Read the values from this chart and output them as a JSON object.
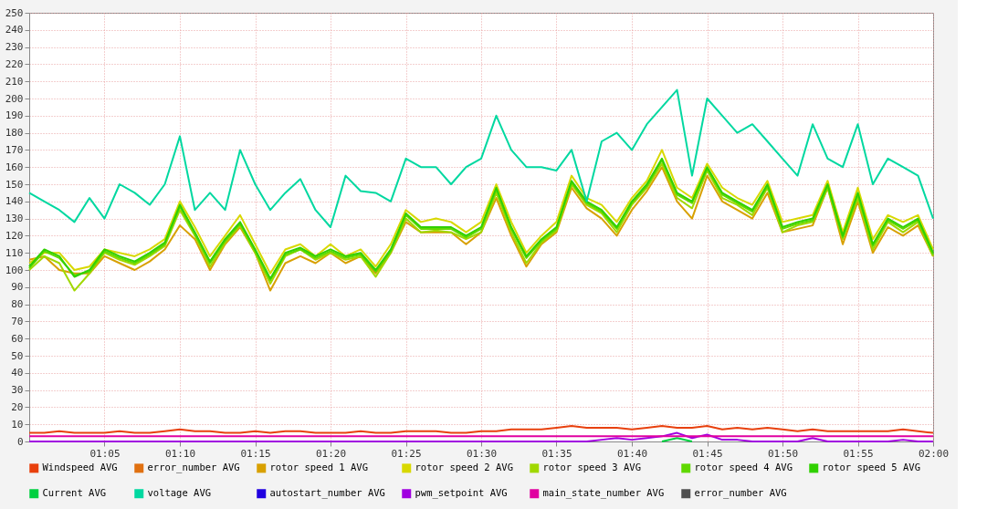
{
  "chart_data": {
    "type": "line",
    "xlim": [
      1,
      2
    ],
    "ylim": [
      0,
      250
    ],
    "yticks": [
      0,
      10,
      20,
      30,
      40,
      50,
      60,
      70,
      80,
      90,
      100,
      110,
      120,
      130,
      140,
      150,
      160,
      170,
      180,
      190,
      200,
      210,
      220,
      230,
      240,
      250
    ],
    "xticks": [
      {
        "value": 1.0833,
        "label": "01:05"
      },
      {
        "value": 1.1667,
        "label": "01:10"
      },
      {
        "value": 1.25,
        "label": "01:15"
      },
      {
        "value": 1.3333,
        "label": "01:20"
      },
      {
        "value": 1.4167,
        "label": "01:25"
      },
      {
        "value": 1.5,
        "label": "01:30"
      },
      {
        "value": 1.5833,
        "label": "01:35"
      },
      {
        "value": 1.6667,
        "label": "01:40"
      },
      {
        "value": 1.75,
        "label": "01:45"
      },
      {
        "value": 1.8333,
        "label": "01:50"
      },
      {
        "value": 1.9167,
        "label": "01:55"
      },
      {
        "value": 2,
        "label": "02:00"
      }
    ],
    "x": [
      1,
      1.0167,
      1.0333,
      1.05,
      1.0667,
      1.0833,
      1.1,
      1.1167,
      1.1333,
      1.15,
      1.1667,
      1.1833,
      1.2,
      1.2167,
      1.2333,
      1.25,
      1.2667,
      1.2833,
      1.3,
      1.3167,
      1.3333,
      1.35,
      1.3667,
      1.3833,
      1.4,
      1.4167,
      1.4333,
      1.45,
      1.4667,
      1.4833,
      1.5,
      1.5167,
      1.5333,
      1.55,
      1.5667,
      1.5833,
      1.6,
      1.6167,
      1.6333,
      1.65,
      1.6667,
      1.6833,
      1.7,
      1.7167,
      1.7333,
      1.75,
      1.7667,
      1.7833,
      1.8,
      1.8167,
      1.8333,
      1.85,
      1.8667,
      1.8833,
      1.9,
      1.9167,
      1.9333,
      1.95,
      1.9667,
      1.9833,
      2
    ],
    "grid": true,
    "legend": "bottom",
    "marker": "none",
    "line_style": "solid",
    "series": [
      {
        "name": "Windspeed AVG",
        "color": "#e8400d",
        "values": [
          5,
          5,
          6,
          5,
          5,
          5,
          6,
          5,
          5,
          6,
          7,
          6,
          6,
          5,
          5,
          6,
          5,
          6,
          6,
          5,
          5,
          5,
          6,
          5,
          5,
          6,
          6,
          6,
          5,
          5,
          6,
          6,
          7,
          7,
          7,
          8,
          9,
          8,
          8,
          8,
          7,
          8,
          9,
          8,
          8,
          9,
          7,
          8,
          7,
          8,
          7,
          6,
          7,
          6,
          6,
          6,
          6,
          6,
          7,
          6,
          5
        ]
      },
      {
        "name": "error_number AVG",
        "color": "#e07010",
        "values": [
          null,
          null,
          null,
          null,
          null,
          null,
          null,
          null,
          null,
          null,
          null,
          null,
          null,
          null,
          null,
          null,
          null,
          null,
          null,
          null,
          null,
          null,
          null,
          null,
          null,
          null,
          null,
          null,
          null,
          null,
          null,
          null,
          null,
          null,
          null,
          null,
          null,
          null,
          null,
          null,
          null,
          null,
          null,
          null,
          null,
          null,
          null,
          null,
          null,
          null,
          null,
          null,
          null,
          null,
          null,
          null,
          null,
          null,
          null,
          null,
          null
        ]
      },
      {
        "name": "rotor speed 1 AVG",
        "color": "#d8a000",
        "values": [
          106,
          108,
          100,
          98,
          98,
          108,
          104,
          100,
          105,
          112,
          126,
          118,
          100,
          115,
          125,
          110,
          88,
          104,
          108,
          104,
          110,
          104,
          108,
          98,
          110,
          128,
          122,
          122,
          122,
          115,
          122,
          142,
          120,
          102,
          115,
          122,
          148,
          136,
          130,
          120,
          135,
          146,
          160,
          140,
          130,
          155,
          140,
          135,
          130,
          145,
          122,
          124,
          126,
          148,
          115,
          140,
          110,
          125,
          120,
          126,
          108
        ]
      },
      {
        "name": "rotor speed 2 AVG",
        "color": "#d8d800",
        "values": [
          104,
          110,
          110,
          100,
          102,
          112,
          110,
          108,
          112,
          118,
          140,
          125,
          108,
          120,
          132,
          115,
          98,
          112,
          115,
          108,
          115,
          108,
          112,
          102,
          115,
          135,
          128,
          130,
          128,
          122,
          128,
          150,
          128,
          110,
          120,
          128,
          155,
          142,
          138,
          128,
          142,
          152,
          170,
          148,
          142,
          162,
          148,
          142,
          138,
          152,
          128,
          130,
          132,
          152,
          122,
          148,
          118,
          132,
          128,
          132,
          112
        ]
      },
      {
        "name": "rotor speed 3 AVG",
        "color": "#a0d800",
        "values": [
          100,
          108,
          104,
          88,
          98,
          110,
          106,
          103,
          108,
          114,
          135,
          120,
          102,
          116,
          126,
          110,
          92,
          108,
          112,
          106,
          110,
          106,
          108,
          96,
          110,
          130,
          122,
          123,
          122,
          118,
          122,
          145,
          122,
          104,
          116,
          123,
          150,
          138,
          133,
          122,
          138,
          148,
          162,
          142,
          136,
          158,
          142,
          138,
          132,
          148,
          122,
          126,
          128,
          148,
          118,
          142,
          112,
          128,
          122,
          128,
          108
        ]
      },
      {
        "name": "rotor speed 4 AVG",
        "color": "#60d800",
        "values": [
          101,
          111,
          107,
          97,
          99,
          111,
          107,
          104,
          109,
          115,
          137,
          121,
          104,
          117,
          127,
          111,
          94,
          109,
          112,
          107,
          111,
          107,
          109,
          99,
          111,
          132,
          124,
          124,
          124,
          119,
          124,
          147,
          124,
          107,
          117,
          124,
          151,
          139,
          134,
          124,
          139,
          149,
          164,
          144,
          139,
          159,
          144,
          139,
          134,
          149,
          124,
          127,
          129,
          149,
          119,
          144,
          114,
          129,
          124,
          129,
          109
        ]
      },
      {
        "name": "rotor speed 5 AVG",
        "color": "#30d000",
        "values": [
          102,
          112,
          108,
          96,
          100,
          112,
          108,
          105,
          110,
          116,
          138,
          122,
          105,
          118,
          128,
          112,
          95,
          110,
          113,
          108,
          112,
          108,
          110,
          100,
          112,
          133,
          125,
          125,
          125,
          120,
          125,
          148,
          125,
          108,
          118,
          125,
          152,
          140,
          135,
          125,
          140,
          150,
          165,
          145,
          140,
          160,
          145,
          140,
          135,
          150,
          125,
          128,
          130,
          150,
          120,
          145,
          115,
          130,
          125,
          130,
          110
        ]
      },
      {
        "name": "Current AVG",
        "color": "#00d040",
        "values": [
          null,
          null,
          null,
          null,
          null,
          null,
          null,
          null,
          null,
          null,
          null,
          null,
          null,
          null,
          null,
          null,
          null,
          null,
          null,
          null,
          null,
          null,
          null,
          null,
          null,
          null,
          null,
          null,
          null,
          null,
          null,
          null,
          null,
          null,
          null,
          null,
          null,
          null,
          null,
          null,
          null,
          null,
          0,
          2,
          0,
          null,
          null,
          null,
          null,
          null,
          null,
          null,
          null,
          null,
          null,
          null,
          null,
          null,
          null,
          null,
          null
        ]
      },
      {
        "name": "voltage AVG",
        "color": "#00d8a0",
        "values": [
          145,
          140,
          135,
          128,
          142,
          130,
          150,
          145,
          138,
          150,
          178,
          135,
          145,
          135,
          170,
          150,
          135,
          145,
          153,
          135,
          125,
          155,
          146,
          145,
          140,
          165,
          160,
          160,
          150,
          160,
          165,
          190,
          170,
          160,
          160,
          158,
          170,
          140,
          175,
          180,
          170,
          185,
          195,
          205,
          155,
          200,
          190,
          180,
          185,
          175,
          165,
          155,
          185,
          165,
          160,
          185,
          150,
          165,
          160,
          155,
          130
        ]
      },
      {
        "name": "autostart_number AVG",
        "color": "#2000e0",
        "values": [
          null,
          null,
          null,
          null,
          null,
          null,
          null,
          null,
          null,
          null,
          null,
          null,
          null,
          null,
          null,
          null,
          null,
          null,
          null,
          null,
          null,
          null,
          null,
          null,
          null,
          null,
          null,
          null,
          null,
          null,
          null,
          null,
          null,
          null,
          null,
          null,
          null,
          null,
          null,
          null,
          null,
          null,
          null,
          null,
          null,
          null,
          null,
          null,
          null,
          null,
          null,
          null,
          null,
          null,
          null,
          null,
          null,
          null,
          null,
          null,
          null
        ]
      },
      {
        "name": "pwm_setpoint AVG",
        "color": "#a000e0",
        "values": [
          0,
          0,
          0,
          0,
          0,
          0,
          0,
          0,
          0,
          0,
          0,
          0,
          0,
          0,
          0,
          0,
          0,
          0,
          0,
          0,
          0,
          0,
          0,
          0,
          0,
          0,
          0,
          0,
          0,
          0,
          0,
          0,
          0,
          0,
          0,
          0,
          0,
          0,
          1,
          2,
          1,
          2,
          3,
          5,
          2,
          4,
          1,
          1,
          0,
          0,
          0,
          0,
          2,
          0,
          0,
          0,
          0,
          0,
          1,
          0,
          0
        ]
      },
      {
        "name": "main_state_number AVG",
        "color": "#e000a0",
        "values": [
          3,
          3,
          3,
          3,
          3,
          3,
          3,
          3,
          3,
          3,
          3,
          3,
          3,
          3,
          3,
          3,
          3,
          3,
          3,
          3,
          3,
          3,
          3,
          3,
          3,
          3,
          3,
          3,
          3,
          3,
          3,
          3,
          3,
          3,
          3,
          3,
          3,
          3,
          3,
          3,
          3,
          3,
          3,
          3,
          3,
          3,
          3,
          3,
          3,
          3,
          3,
          3,
          3,
          3,
          3,
          3,
          3,
          3,
          3,
          3,
          3
        ]
      },
      {
        "name": "error_number AVG",
        "color": "#505050",
        "values": [
          null,
          null,
          null,
          null,
          null,
          null,
          null,
          null,
          null,
          null,
          null,
          null,
          null,
          null,
          null,
          null,
          null,
          null,
          null,
          null,
          null,
          null,
          null,
          null,
          null,
          null,
          null,
          null,
          null,
          null,
          null,
          null,
          null,
          null,
          null,
          null,
          null,
          null,
          null,
          null,
          null,
          null,
          null,
          null,
          null,
          null,
          null,
          null,
          null,
          null,
          null,
          null,
          null,
          null,
          null,
          null,
          null,
          null,
          null,
          null,
          null
        ]
      }
    ]
  }
}
